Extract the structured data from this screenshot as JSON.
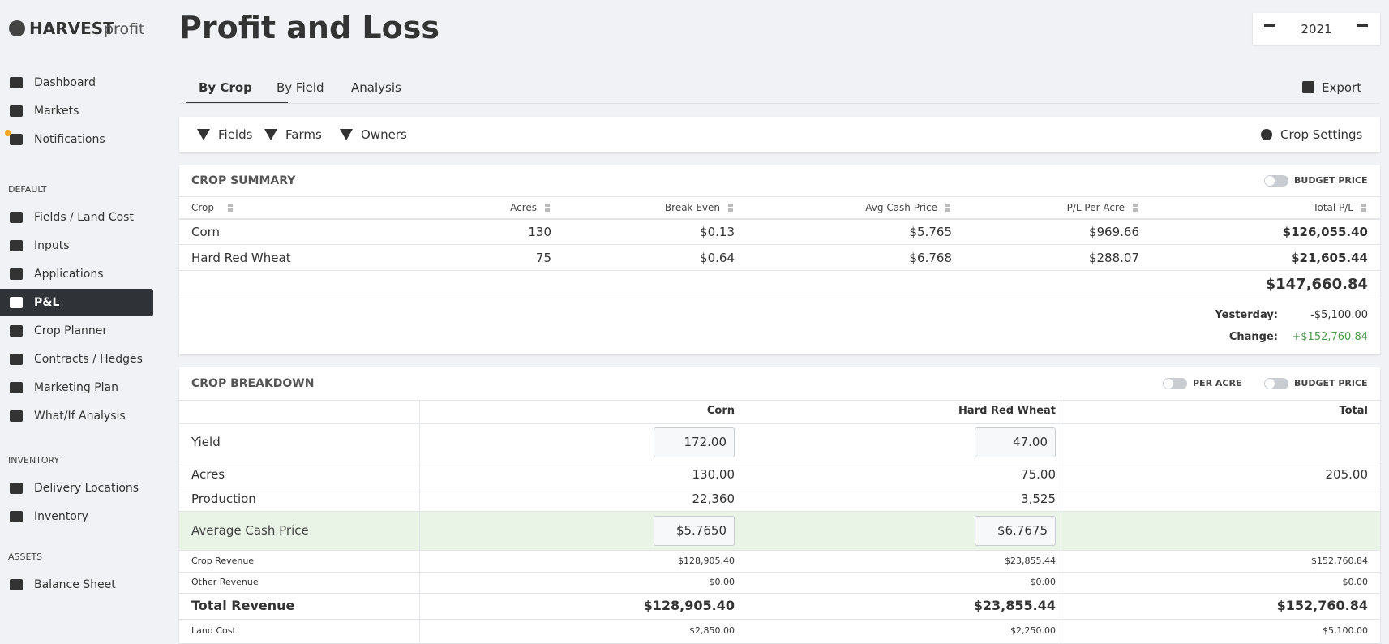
{
  "brand": {
    "name": "HARVEST",
    "suffix": "profit"
  },
  "page_title": "Profit and Loss",
  "year": "2021",
  "sidebar": {
    "top": [
      "Dashboard",
      "Markets",
      "Notifications"
    ],
    "sections": [
      {
        "title": "DEFAULT",
        "items": [
          "Fields / Land Cost",
          "Inputs",
          "Applications",
          "P&L",
          "Crop Planner",
          "Contracts / Hedges",
          "Marketing Plan",
          "What/If Analysis"
        ]
      },
      {
        "title": "INVENTORY",
        "items": [
          "Delivery Locations",
          "Inventory"
        ]
      },
      {
        "title": "ASSETS",
        "items": [
          "Balance Sheet"
        ]
      }
    ]
  },
  "tabs": [
    "By Crop",
    "By Field",
    "Analysis"
  ],
  "export": "Export",
  "filters": [
    "Fields",
    "Farms",
    "Owners"
  ],
  "crop_settings": "Crop Settings",
  "crop_summary": {
    "title": "CROP SUMMARY",
    "toggle": "BUDGET PRICE",
    "columns": [
      "Crop",
      "Acres",
      "Break Even",
      "Avg Cash Price",
      "P/L Per Acre",
      "Total P/L"
    ],
    "rows": [
      [
        "Corn",
        "130",
        "$0.13",
        "$5.765",
        "$969.66",
        "$126,055.40"
      ],
      [
        "Hard Red Wheat",
        "75",
        "$0.64",
        "$6.768",
        "$288.07",
        "$21,605.44"
      ]
    ],
    "total": "$147,660.84",
    "yesterday_label": "Yesterday:",
    "yesterday": "-$5,100.00",
    "change_label": "Change:",
    "change": "+$152,760.84"
  },
  "crop_breakdown": {
    "title": "CROP BREAKDOWN",
    "toggles": [
      "PER ACRE",
      "BUDGET PRICE"
    ],
    "columns": [
      "Corn",
      "Hard Red Wheat",
      "Total"
    ],
    "rows": [
      {
        "label": "Yield",
        "values": [
          "172.00",
          "47.00"
        ],
        "input": true
      },
      {
        "label": "Acres",
        "values": [
          "130.00",
          "75.00",
          "205.00"
        ]
      },
      {
        "label": "Production",
        "values": [
          "22,360",
          "3,525"
        ]
      },
      {
        "label": "Average Cash Price",
        "values": [
          "$5.7650",
          "$6.7675"
        ],
        "input": true,
        "highlight": true
      },
      {
        "label": "Crop Revenue",
        "values": [
          "$128,905.40",
          "$23,855.44",
          "$152,760.84"
        ],
        "small": true
      },
      {
        "label": "Other Revenue",
        "values": [
          "$0.00",
          "$0.00",
          "$0.00"
        ],
        "small": true
      },
      {
        "label": "Total Revenue",
        "values": [
          "$128,905.40",
          "$23,855.44",
          "$152,760.84"
        ],
        "bold": true
      },
      {
        "label": "Land Cost",
        "values": [
          "$2,850.00",
          "$2,250.00",
          "$5,100.00"
        ],
        "small": true
      }
    ]
  }
}
